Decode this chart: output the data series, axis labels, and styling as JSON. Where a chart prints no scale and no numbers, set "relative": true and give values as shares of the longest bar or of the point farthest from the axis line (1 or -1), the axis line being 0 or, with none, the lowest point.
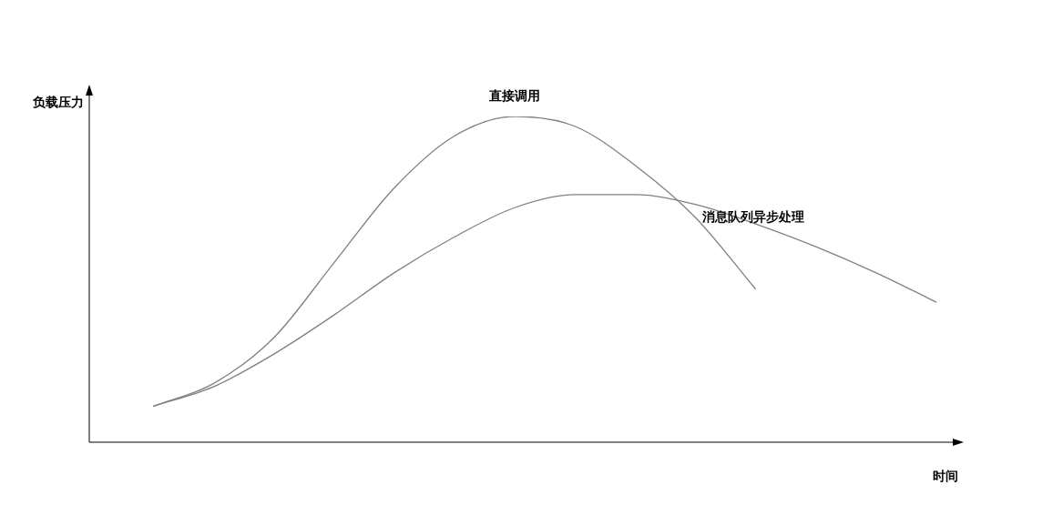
{
  "chart_data": {
    "type": "line",
    "relative": true,
    "xlabel": "时间",
    "ylabel": "负载压力",
    "categories": [
      null,
      null,
      null,
      null,
      null,
      null,
      null,
      null,
      null,
      null,
      null,
      null,
      null,
      null
    ],
    "legend": false,
    "marker": "none",
    "line_style": "solid",
    "series": [
      {
        "name": "直接调用",
        "color": "#808080",
        "values": [
          0.11,
          0.18,
          0.32,
          0.55,
          0.78,
          0.94,
          1.0,
          0.97,
          0.85,
          0.69,
          0.47,
          null,
          null,
          null
        ]
      },
      {
        "name": "消息队列异步处理",
        "color": "#808080",
        "values": [
          0.11,
          0.17,
          0.27,
          0.39,
          0.52,
          0.63,
          0.72,
          0.76,
          0.76,
          0.73,
          0.67,
          0.6,
          0.52,
          0.43
        ]
      }
    ]
  }
}
